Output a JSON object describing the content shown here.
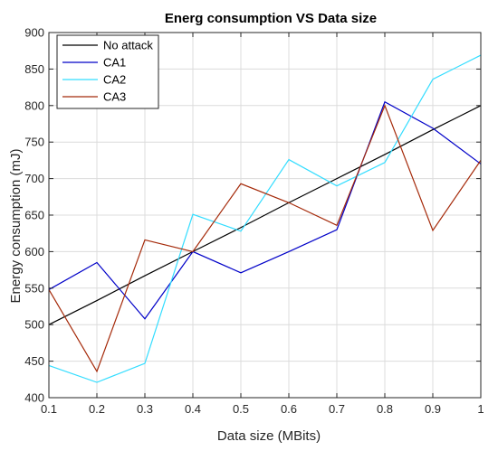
{
  "chart_data": {
    "type": "line",
    "title": "Energ consumption VS Data size",
    "xlabel": "Data size (MBits)",
    "ylabel": "Energy consumption (mJ)",
    "xlim": [
      0.1,
      1
    ],
    "ylim": [
      400,
      900
    ],
    "x": [
      0.1,
      0.2,
      0.3,
      0.4,
      0.5,
      0.6,
      0.7,
      0.8,
      0.9,
      1.0
    ],
    "xticks": [
      "0.1",
      "0.2",
      "0.3",
      "0.4",
      "0.5",
      "0.6",
      "0.7",
      "0.8",
      "0.9",
      "1"
    ],
    "yticks": [
      "400",
      "450",
      "500",
      "550",
      "600",
      "650",
      "700",
      "750",
      "800",
      "850",
      "900"
    ],
    "grid": true,
    "legend_position": "top-left",
    "series": [
      {
        "name": "No attack",
        "color": "#000000",
        "values": [
          500,
          533,
          567,
          600,
          633,
          667,
          700,
          733,
          767,
          800
        ]
      },
      {
        "name": "CA1",
        "color": "#0000c8",
        "values": [
          548,
          585,
          508,
          600,
          571,
          600,
          630,
          805,
          769,
          720
        ]
      },
      {
        "name": "CA2",
        "color": "#33ddff",
        "values": [
          444,
          421,
          447,
          651,
          628,
          726,
          690,
          722,
          836,
          869
        ]
      },
      {
        "name": "CA3",
        "color": "#a52a0a",
        "values": [
          548,
          436,
          616,
          600,
          693,
          667,
          636,
          800,
          629,
          725
        ]
      }
    ]
  }
}
